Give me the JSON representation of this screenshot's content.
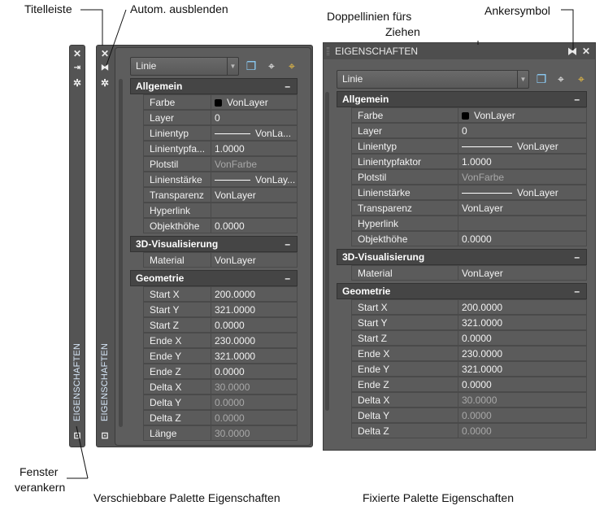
{
  "annotations": {
    "titelleiste": "Titelleiste",
    "autom": "Autom. ausblenden",
    "doppellinien_1": "Doppellinien fürs",
    "doppellinien_2": "Ziehen",
    "ankersymbol": "Ankersymbol",
    "fenster_1": "Fenster",
    "fenster_2": "verankern",
    "caption_left": "Verschiebbare Palette Eigenschaften",
    "caption_right": "Fixierte Palette Eigenschaften"
  },
  "palette_title": "EIGENSCHAFTEN",
  "object_select": "Linie",
  "icons": [
    "close-icon",
    "autohide-icon",
    "settings-icon",
    "anchor-icon",
    "quick-select-add-icon",
    "select-objects-icon",
    "toggle-pickadd-icon",
    "dock-window-icon"
  ],
  "colors": {
    "panel": "#5d5d5d",
    "section": "#454545",
    "vertical_title": "#d6e6f7",
    "dim_value": "#a8a8a8"
  },
  "floating": {
    "sections": [
      {
        "title": "Allgemein",
        "toggle": "–",
        "rows": [
          {
            "name": "Farbe",
            "value": "VonLayer",
            "kind": "swatch"
          },
          {
            "name": "Layer",
            "value": "0"
          },
          {
            "name": "Linientyp",
            "value": "VonLa...",
            "kind": "line"
          },
          {
            "name": "Linientypfa...",
            "value": "1.0000"
          },
          {
            "name": "Plotstil",
            "value": "VonFarbe",
            "dim": true
          },
          {
            "name": "Linienstärke",
            "value": "VonLay...",
            "kind": "line"
          },
          {
            "name": "Transparenz",
            "value": "VonLayer"
          },
          {
            "name": "Hyperlink",
            "value": ""
          },
          {
            "name": "Objekthöhe",
            "value": "0.0000"
          }
        ]
      },
      {
        "title": "3D-Visualisierung",
        "toggle": "–",
        "rows": [
          {
            "name": "Material",
            "value": "VonLayer"
          }
        ]
      },
      {
        "title": "Geometrie",
        "toggle": "–",
        "rows": [
          {
            "name": "Start X",
            "value": "200.0000"
          },
          {
            "name": "Start Y",
            "value": "321.0000"
          },
          {
            "name": "Start Z",
            "value": "0.0000"
          },
          {
            "name": "Ende X",
            "value": "230.0000"
          },
          {
            "name": "Ende Y",
            "value": "321.0000"
          },
          {
            "name": "Ende Z",
            "value": "0.0000"
          },
          {
            "name": "Delta X",
            "value": "30.0000",
            "dim": true
          },
          {
            "name": "Delta Y",
            "value": "0.0000",
            "dim": true
          },
          {
            "name": "Delta Z",
            "value": "0.0000",
            "dim": true
          },
          {
            "name": "Länge",
            "value": "30.0000",
            "dim": true
          }
        ]
      }
    ]
  },
  "docked": {
    "sections": [
      {
        "title": "Allgemein",
        "toggle": "–",
        "rows": [
          {
            "name": "Farbe",
            "value": "VonLayer",
            "kind": "swatch"
          },
          {
            "name": "Layer",
            "value": "0"
          },
          {
            "name": "Linientyp",
            "value": "VonLayer",
            "kind": "line"
          },
          {
            "name": "Linientypfaktor",
            "value": "1.0000"
          },
          {
            "name": "Plotstil",
            "value": "VonFarbe",
            "dim": true
          },
          {
            "name": "Linienstärke",
            "value": "VonLayer",
            "kind": "line"
          },
          {
            "name": "Transparenz",
            "value": "VonLayer"
          },
          {
            "name": "Hyperlink",
            "value": ""
          },
          {
            "name": "Objekthöhe",
            "value": "0.0000"
          }
        ]
      },
      {
        "title": "3D-Visualisierung",
        "toggle": "–",
        "rows": [
          {
            "name": "Material",
            "value": "VonLayer"
          }
        ]
      },
      {
        "title": "Geometrie",
        "toggle": "–",
        "rows": [
          {
            "name": "Start X",
            "value": "200.0000"
          },
          {
            "name": "Start Y",
            "value": "321.0000"
          },
          {
            "name": "Start Z",
            "value": "0.0000"
          },
          {
            "name": "Ende X",
            "value": "230.0000"
          },
          {
            "name": "Ende Y",
            "value": "321.0000"
          },
          {
            "name": "Ende Z",
            "value": "0.0000"
          },
          {
            "name": "Delta X",
            "value": "30.0000",
            "dim": true
          },
          {
            "name": "Delta Y",
            "value": "0.0000",
            "dim": true
          },
          {
            "name": "Delta Z",
            "value": "0.0000",
            "dim": true
          }
        ]
      }
    ]
  }
}
